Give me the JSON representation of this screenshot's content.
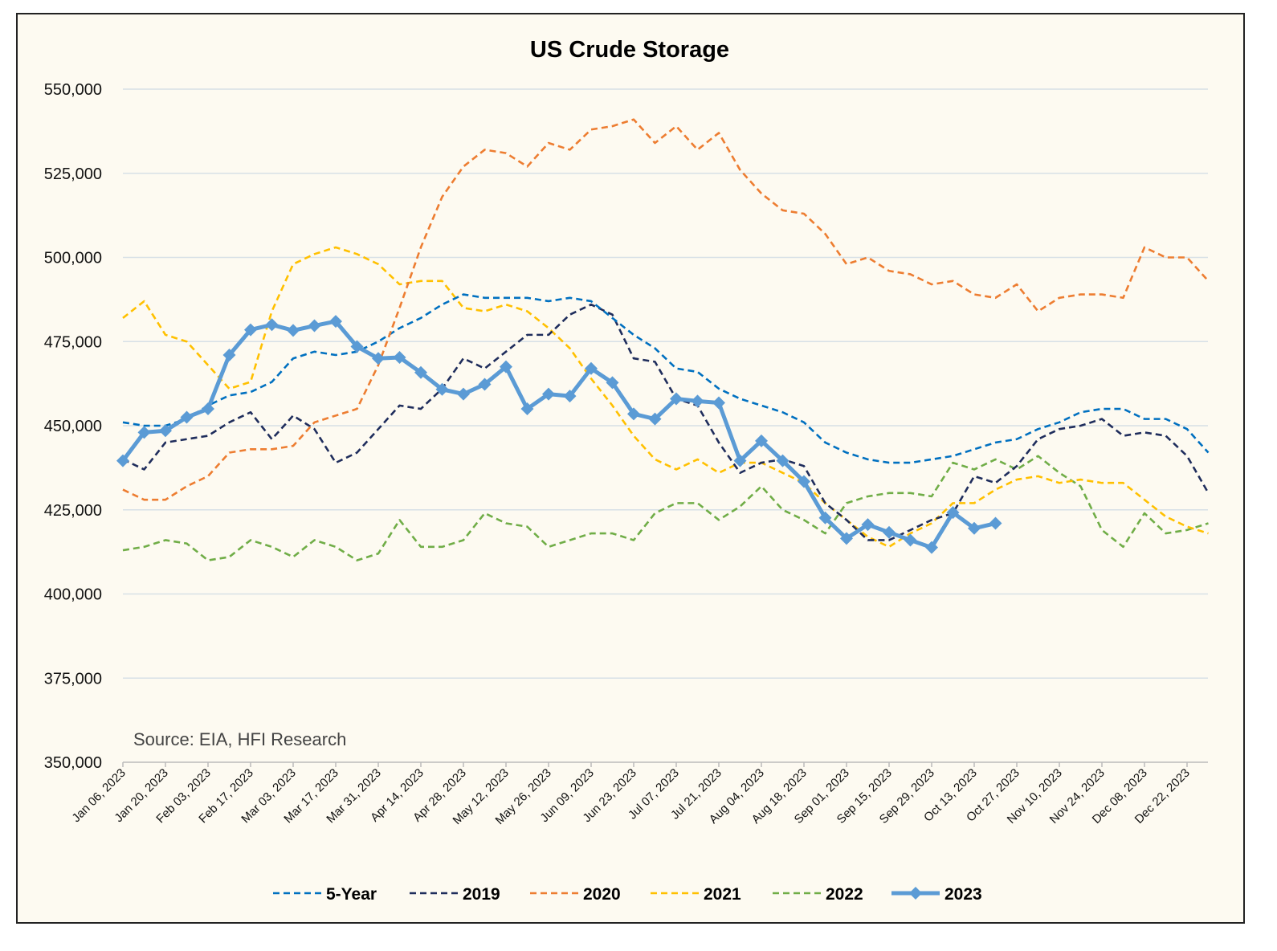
{
  "chart_data": {
    "type": "line",
    "title": "US Crude Storage",
    "annotation": "Source: EIA, HFI Research",
    "xlabel": "",
    "ylabel": "",
    "ylim": [
      350000,
      550000
    ],
    "yticks": [
      350000,
      375000,
      400000,
      425000,
      450000,
      475000,
      500000,
      525000,
      550000
    ],
    "ytick_labels": [
      "350,000",
      "375,000",
      "400,000",
      "425,000",
      "450,000",
      "475,000",
      "500,000",
      "525,000",
      "550,000"
    ],
    "grid": true,
    "legend_position": "bottom",
    "xtick_labels": [
      "Jan 06, 2023",
      "Jan 20, 2023",
      "Feb 03, 2023",
      "Feb 17, 2023",
      "Mar 03, 2023",
      "Mar 17, 2023",
      "Mar 31, 2023",
      "Apr 14, 2023",
      "Apr 28, 2023",
      "May 12, 2023",
      "May 26, 2023",
      "Jun 09, 2023",
      "Jun 23, 2023",
      "Jul 07, 2023",
      "Jul 21, 2023",
      "Aug 04, 2023",
      "Aug 18, 2023",
      "Sep 01, 2023",
      "Sep 15, 2023",
      "Sep 29, 2023",
      "Oct 13, 2023",
      "Oct 27, 2023",
      "Nov 10, 2023",
      "Nov 24, 2023",
      "Dec 08, 2023",
      "Dec 22, 2023"
    ],
    "weeks": 52,
    "series": [
      {
        "name": "5-Year",
        "color": "#0070c0",
        "style": "dashed",
        "values": [
          451000,
          450000,
          450000,
          452000,
          456000,
          459000,
          460000,
          463000,
          470000,
          472000,
          471000,
          472000,
          475000,
          479000,
          482000,
          486000,
          489000,
          488000,
          488000,
          488000,
          487000,
          488000,
          487000,
          482000,
          477000,
          473000,
          467000,
          466000,
          461000,
          458000,
          456000,
          454000,
          451000,
          445000,
          442000,
          440000,
          439000,
          439000,
          440000,
          441000,
          443000,
          445000,
          446000,
          449000,
          451000,
          454000,
          455000,
          455000,
          452000,
          452000,
          449000,
          442000
        ]
      },
      {
        "name": "2019",
        "color": "#1f2d5c",
        "style": "dashed",
        "values": [
          440000,
          437000,
          445000,
          446000,
          447000,
          451000,
          454000,
          446000,
          453000,
          449000,
          439000,
          442000,
          449000,
          456000,
          455000,
          461000,
          470000,
          467000,
          472000,
          477000,
          477000,
          483000,
          486000,
          483000,
          470000,
          469000,
          458000,
          456000,
          445000,
          436000,
          439000,
          440000,
          438000,
          427000,
          422000,
          416000,
          416000,
          419000,
          422000,
          424000,
          435000,
          433000,
          438000,
          446000,
          449000,
          450000,
          452000,
          447000,
          448000,
          447000,
          441000,
          430000
        ]
      },
      {
        "name": "2020",
        "color": "#ed7d31",
        "style": "dashed",
        "values": [
          431000,
          428000,
          428000,
          432000,
          435000,
          442000,
          443000,
          443000,
          444000,
          451000,
          453000,
          455000,
          468000,
          485000,
          503000,
          518000,
          527000,
          532000,
          531000,
          527000,
          534000,
          532000,
          538000,
          539000,
          541000,
          534000,
          539000,
          532000,
          537000,
          526000,
          519000,
          514000,
          513000,
          507000,
          498000,
          500000,
          496000,
          495000,
          492000,
          493000,
          489000,
          488000,
          492000,
          484000,
          488000,
          489000,
          489000,
          488000,
          503000,
          500000,
          500000,
          493000
        ]
      },
      {
        "name": "2021",
        "color": "#ffc000",
        "style": "dashed",
        "values": [
          482000,
          487000,
          477000,
          475000,
          468000,
          461000,
          463000,
          484000,
          498000,
          501000,
          503000,
          501000,
          498000,
          492000,
          493000,
          493000,
          485000,
          484000,
          486000,
          484000,
          479000,
          473000,
          464000,
          456000,
          447000,
          440000,
          437000,
          440000,
          436000,
          439000,
          439000,
          436000,
          433000,
          427000,
          422000,
          417000,
          414000,
          418000,
          421000,
          427000,
          427000,
          431000,
          434000,
          435000,
          433000,
          434000,
          433000,
          433000,
          428000,
          423000,
          420000,
          418000
        ]
      },
      {
        "name": "2022",
        "color": "#70ad47",
        "style": "dashed",
        "values": [
          413000,
          414000,
          416000,
          415000,
          410000,
          411000,
          416000,
          414000,
          411000,
          416000,
          414000,
          410000,
          412000,
          422000,
          414000,
          414000,
          416000,
          424000,
          421000,
          420000,
          414000,
          416000,
          418000,
          418000,
          416000,
          424000,
          427000,
          427000,
          422000,
          426000,
          432000,
          425000,
          422000,
          418000,
          427000,
          429000,
          430000,
          430000,
          429000,
          439000,
          437000,
          440000,
          437000,
          441000,
          436000,
          432000,
          419000,
          414000,
          424000,
          418000,
          419000,
          421000
        ]
      },
      {
        "name": "2023",
        "color": "#5b9bd5",
        "style": "solid-diamond",
        "values": [
          439600,
          448000,
          448500,
          452500,
          455000,
          471000,
          478500,
          480000,
          478300,
          479700,
          481000,
          473500,
          470000,
          470300,
          465800,
          460800,
          459400,
          462300,
          467500,
          455000,
          459400,
          458800,
          467000,
          462800,
          453500,
          452000,
          458000,
          457300,
          456800,
          439600,
          445500,
          439600,
          433400,
          422600,
          416500,
          420600,
          418300,
          416000,
          413800,
          424200,
          419500,
          421000
        ]
      }
    ]
  }
}
